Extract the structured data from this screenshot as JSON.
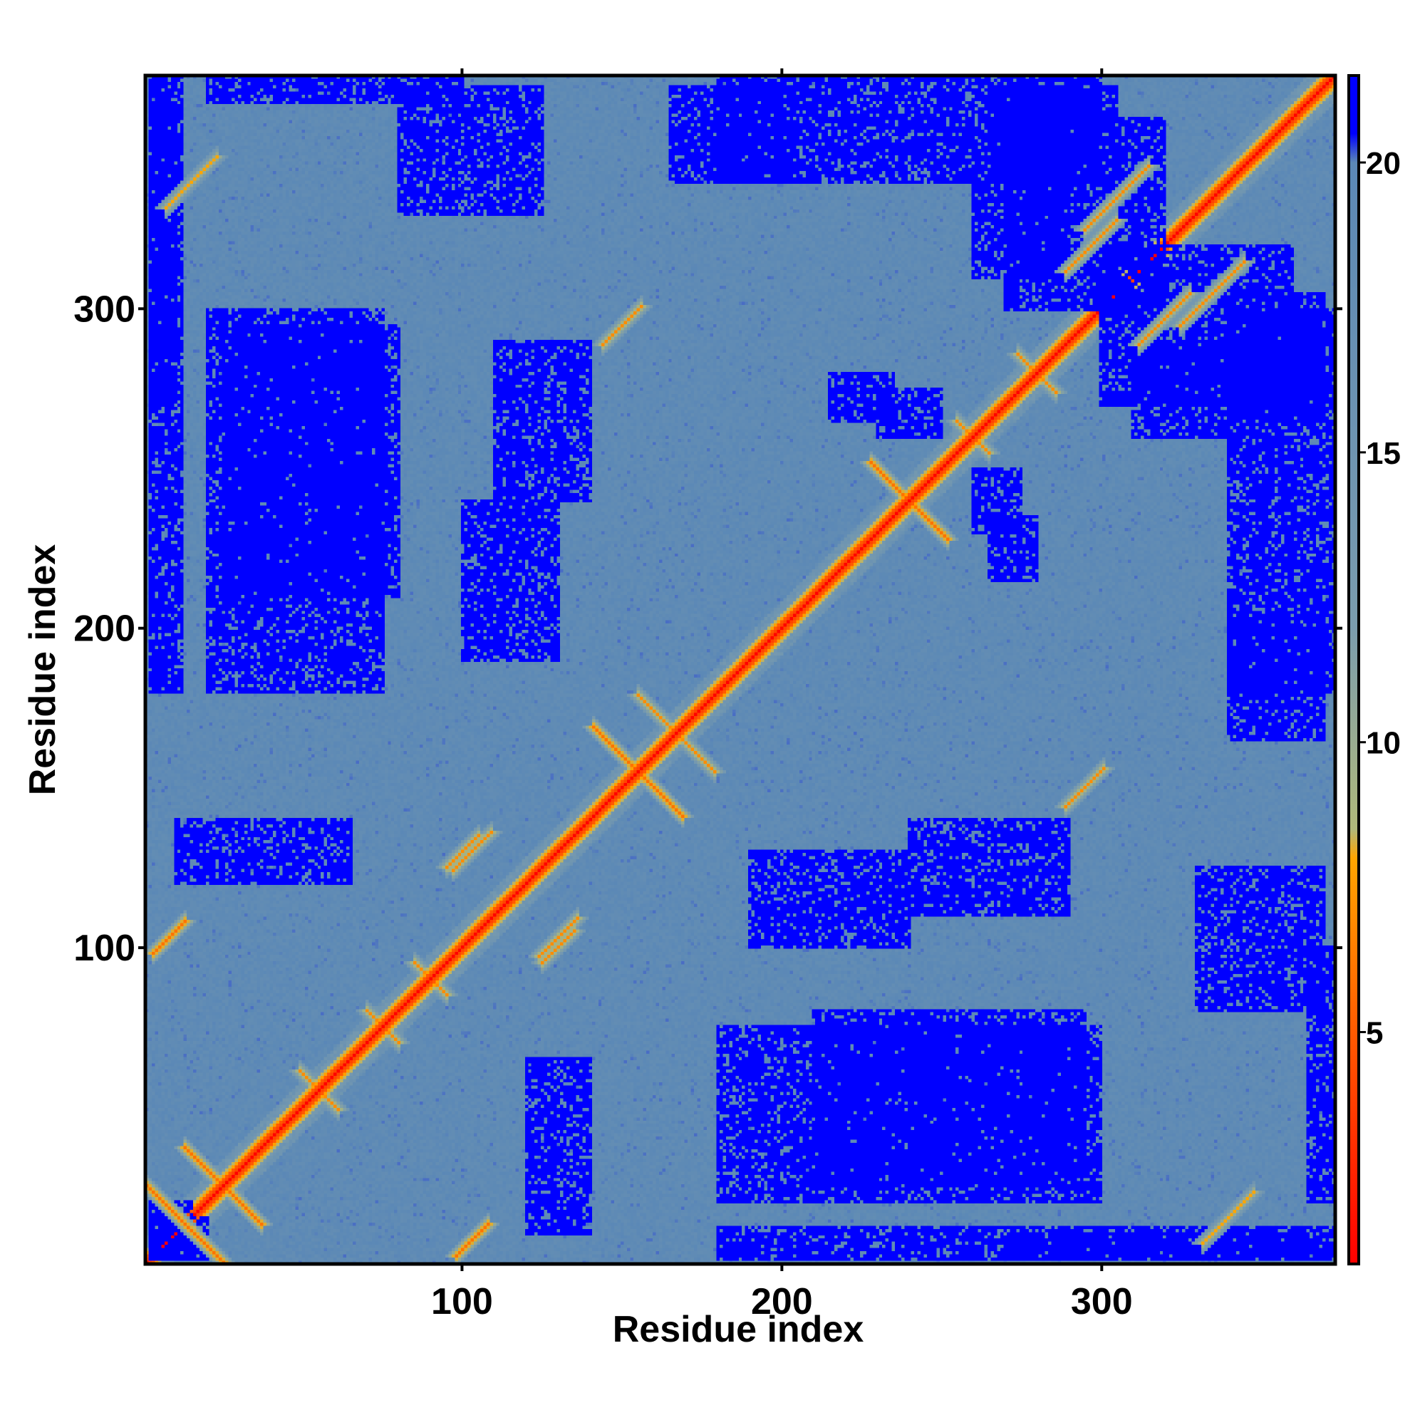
{
  "chart_data": {
    "type": "heatmap",
    "title": "",
    "xlabel": "Residue index",
    "ylabel": "Residue index",
    "xlim": [
      1,
      373
    ],
    "ylim": [
      1,
      373
    ],
    "x_ticks": [
      100,
      200,
      300
    ],
    "y_ticks": [
      100,
      200,
      300
    ],
    "colorbar": {
      "range": [
        1,
        21.5
      ],
      "ticks": [
        5,
        10,
        15,
        20
      ],
      "stops": [
        {
          "value": 1,
          "color": "#ff0000"
        },
        {
          "value": 5,
          "color": "#ff5a00"
        },
        {
          "value": 8,
          "color": "#ffa500"
        },
        {
          "value": 8.5,
          "color": "#b0b87a"
        },
        {
          "value": 12,
          "color": "#7a9cae"
        },
        {
          "value": 20,
          "color": "#5b88b6"
        },
        {
          "value": 20.5,
          "color": "#0000ff"
        },
        {
          "value": 21.5,
          "color": "#0000ff"
        }
      ]
    },
    "background_value": 19,
    "diagonal_value": 1,
    "contacts": [
      {
        "center": [
          13,
          13
        ],
        "direction": "anti",
        "half_length": 12,
        "value": 6
      },
      {
        "center": [
          25,
          25
        ],
        "direction": "anti",
        "half_length": 12,
        "value": 6
      },
      {
        "center": [
          155,
          155
        ],
        "direction": "anti",
        "half_length": 14,
        "value": 6
      },
      {
        "center": [
          167,
          167
        ],
        "direction": "anti",
        "half_length": 12,
        "value": 7
      },
      {
        "center": [
          240,
          240
        ],
        "direction": "anti",
        "half_length": 12,
        "value": 6
      },
      {
        "center": [
          103,
          8
        ],
        "direction": "parallel",
        "half_length": 5,
        "value": 6
      },
      {
        "center": [
          8,
          103
        ],
        "direction": "parallel",
        "half_length": 5,
        "value": 6
      },
      {
        "center": [
          130,
          100
        ],
        "direction": "parallel",
        "half_length": 5,
        "value": 7
      },
      {
        "center": [
          100,
          130
        ],
        "direction": "parallel",
        "half_length": 5,
        "value": 7
      },
      {
        "center": [
          103,
          130
        ],
        "direction": "parallel",
        "half_length": 6,
        "value": 7
      },
      {
        "center": [
          130,
          103
        ],
        "direction": "parallel",
        "half_length": 6,
        "value": 7
      },
      {
        "center": [
          295,
          150
        ],
        "direction": "parallel",
        "half_length": 6,
        "value": 7
      },
      {
        "center": [
          150,
          295
        ],
        "direction": "parallel",
        "half_length": 6,
        "value": 7
      },
      {
        "center": [
          305,
          335
        ],
        "direction": "parallel",
        "half_length": 10,
        "value": 7
      },
      {
        "center": [
          335,
          305
        ],
        "direction": "parallel",
        "half_length": 10,
        "value": 7
      },
      {
        "center": [
          297,
          320
        ],
        "direction": "parallel",
        "half_length": 8,
        "value": 7
      },
      {
        "center": [
          320,
          297
        ],
        "direction": "parallel",
        "half_length": 8,
        "value": 7
      },
      {
        "center": [
          340,
          15
        ],
        "direction": "parallel",
        "half_length": 8,
        "value": 8
      },
      {
        "center": [
          15,
          340
        ],
        "direction": "parallel",
        "half_length": 8,
        "value": 8
      },
      {
        "center": [
          55,
          55
        ],
        "direction": "anti",
        "half_length": 6,
        "value": 7
      },
      {
        "center": [
          75,
          75
        ],
        "direction": "anti",
        "half_length": 5,
        "value": 7
      },
      {
        "center": [
          90,
          90
        ],
        "direction": "anti",
        "half_length": 5,
        "value": 7
      },
      {
        "center": [
          280,
          280
        ],
        "direction": "anti",
        "half_length": 6,
        "value": 7
      },
      {
        "center": [
          260,
          260
        ],
        "direction": "anti",
        "half_length": 5,
        "value": 7
      }
    ],
    "high_blocks": [
      {
        "x": [
          20,
          75
        ],
        "y": [
          180,
          300
        ]
      },
      {
        "x": [
          210,
          295
        ],
        "y": [
          25,
          80
        ]
      },
      {
        "x": [
          165,
          205
        ],
        "y": [
          340,
          370
        ]
      },
      {
        "x": [
          265,
          305
        ],
        "y": [
          340,
          370
        ]
      },
      {
        "x": [
          2,
          10
        ],
        "y": [
          270,
          370
        ]
      },
      {
        "x": [
          365,
          373
        ],
        "y": [
          20,
          100
        ]
      },
      {
        "x": [
          340,
          373
        ],
        "y": [
          180,
          300
        ]
      },
      {
        "x": [
          10,
          65
        ],
        "y": [
          120,
          140
        ]
      },
      {
        "x": [
          190,
          240
        ],
        "y": [
          100,
          130
        ]
      },
      {
        "x": [
          240,
          290
        ],
        "y": [
          110,
          140
        ]
      },
      {
        "x": [
          80,
          125
        ],
        "y": [
          330,
          370
        ]
      },
      {
        "x": [
          270,
          320
        ],
        "y": [
          300,
          360
        ]
      },
      {
        "x": [
          2,
          15
        ],
        "y": [
          2,
          20
        ]
      },
      {
        "x": [
          180,
          373
        ],
        "y": [
          2,
          12
        ]
      },
      {
        "x": [
          230,
          250
        ],
        "y": [
          260,
          275
        ]
      },
      {
        "x": [
          265,
          280
        ],
        "y": [
          215,
          235
        ]
      },
      {
        "x": [
          310,
          340
        ],
        "y": [
          260,
          290
        ]
      }
    ]
  }
}
